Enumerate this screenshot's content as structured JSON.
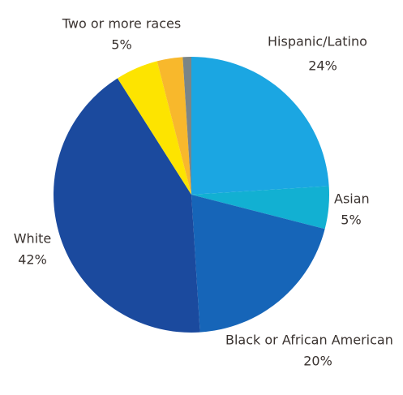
{
  "chart_data": {
    "type": "pie",
    "categories": [
      "Hispanic/Latino",
      "Asian",
      "Black or African American",
      "White",
      "Two or more races",
      null,
      null
    ],
    "values": [
      24,
      5,
      20,
      42,
      5,
      3,
      1
    ],
    "value_labels": [
      "24%",
      "5%",
      "20%",
      "42%",
      "5%",
      null,
      null
    ],
    "colors": [
      "#1ba6e2",
      "#12b0d2",
      "#1665b8",
      "#1b4a9e",
      "#fde400",
      "#f8b82c",
      "#7b8587"
    ]
  }
}
